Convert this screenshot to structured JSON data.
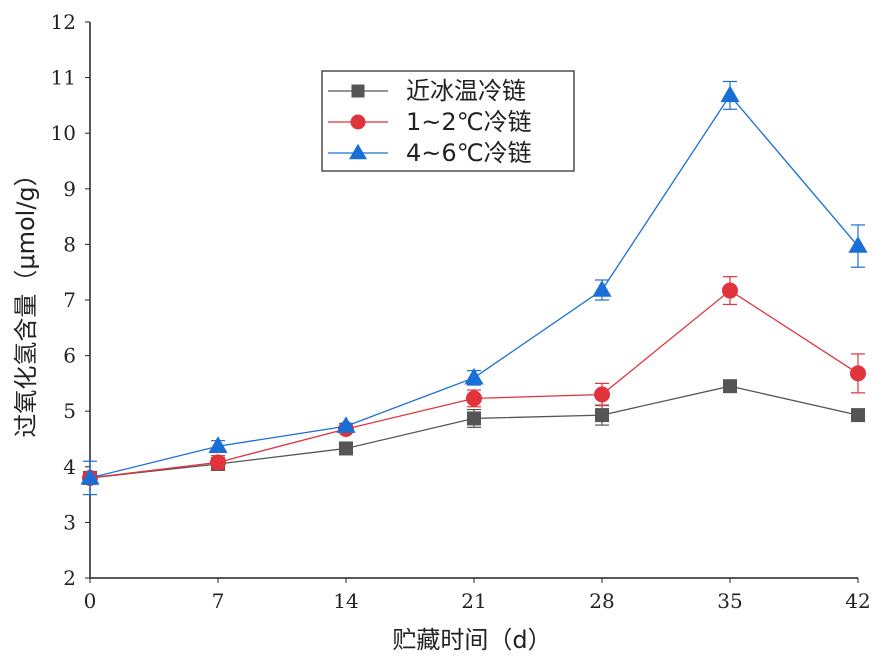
{
  "chart_data": {
    "type": "line",
    "title": "",
    "xlabel": "贮藏时间（d）",
    "ylabel": "过氧化氢含量（μmol/g）",
    "x": [
      0,
      7,
      14,
      21,
      28,
      35,
      42
    ],
    "x_ticks": [
      "0",
      "7",
      "14",
      "21",
      "28",
      "35",
      "42"
    ],
    "xlim": [
      0,
      42
    ],
    "y_ticks": [
      "2",
      "3",
      "4",
      "5",
      "6",
      "7",
      "8",
      "9",
      "10",
      "11",
      "12"
    ],
    "ylim": [
      2,
      12
    ],
    "grid": false,
    "legend_position": "top-center",
    "series": [
      {
        "name": "近冰温冷链",
        "color": "#555555",
        "marker": "square",
        "values": [
          3.8,
          4.05,
          4.33,
          4.87,
          4.93,
          5.45,
          4.93
        ],
        "errors": [
          0.0,
          0.05,
          0.06,
          0.16,
          0.18,
          0.05,
          0.04
        ]
      },
      {
        "name": "1~2℃冷链",
        "color": "#e0333a",
        "marker": "circle",
        "values": [
          3.8,
          4.08,
          4.68,
          5.23,
          5.3,
          7.17,
          5.68
        ],
        "errors": [
          0.0,
          0.12,
          0.05,
          0.15,
          0.2,
          0.25,
          0.35
        ]
      },
      {
        "name": "4~6℃冷链",
        "color": "#1a6fd6",
        "marker": "triangle",
        "values": [
          3.8,
          4.37,
          4.73,
          5.6,
          7.18,
          10.68,
          7.97
        ],
        "errors": [
          0.3,
          0.1,
          0.05,
          0.13,
          0.18,
          0.25,
          0.38
        ]
      }
    ]
  }
}
